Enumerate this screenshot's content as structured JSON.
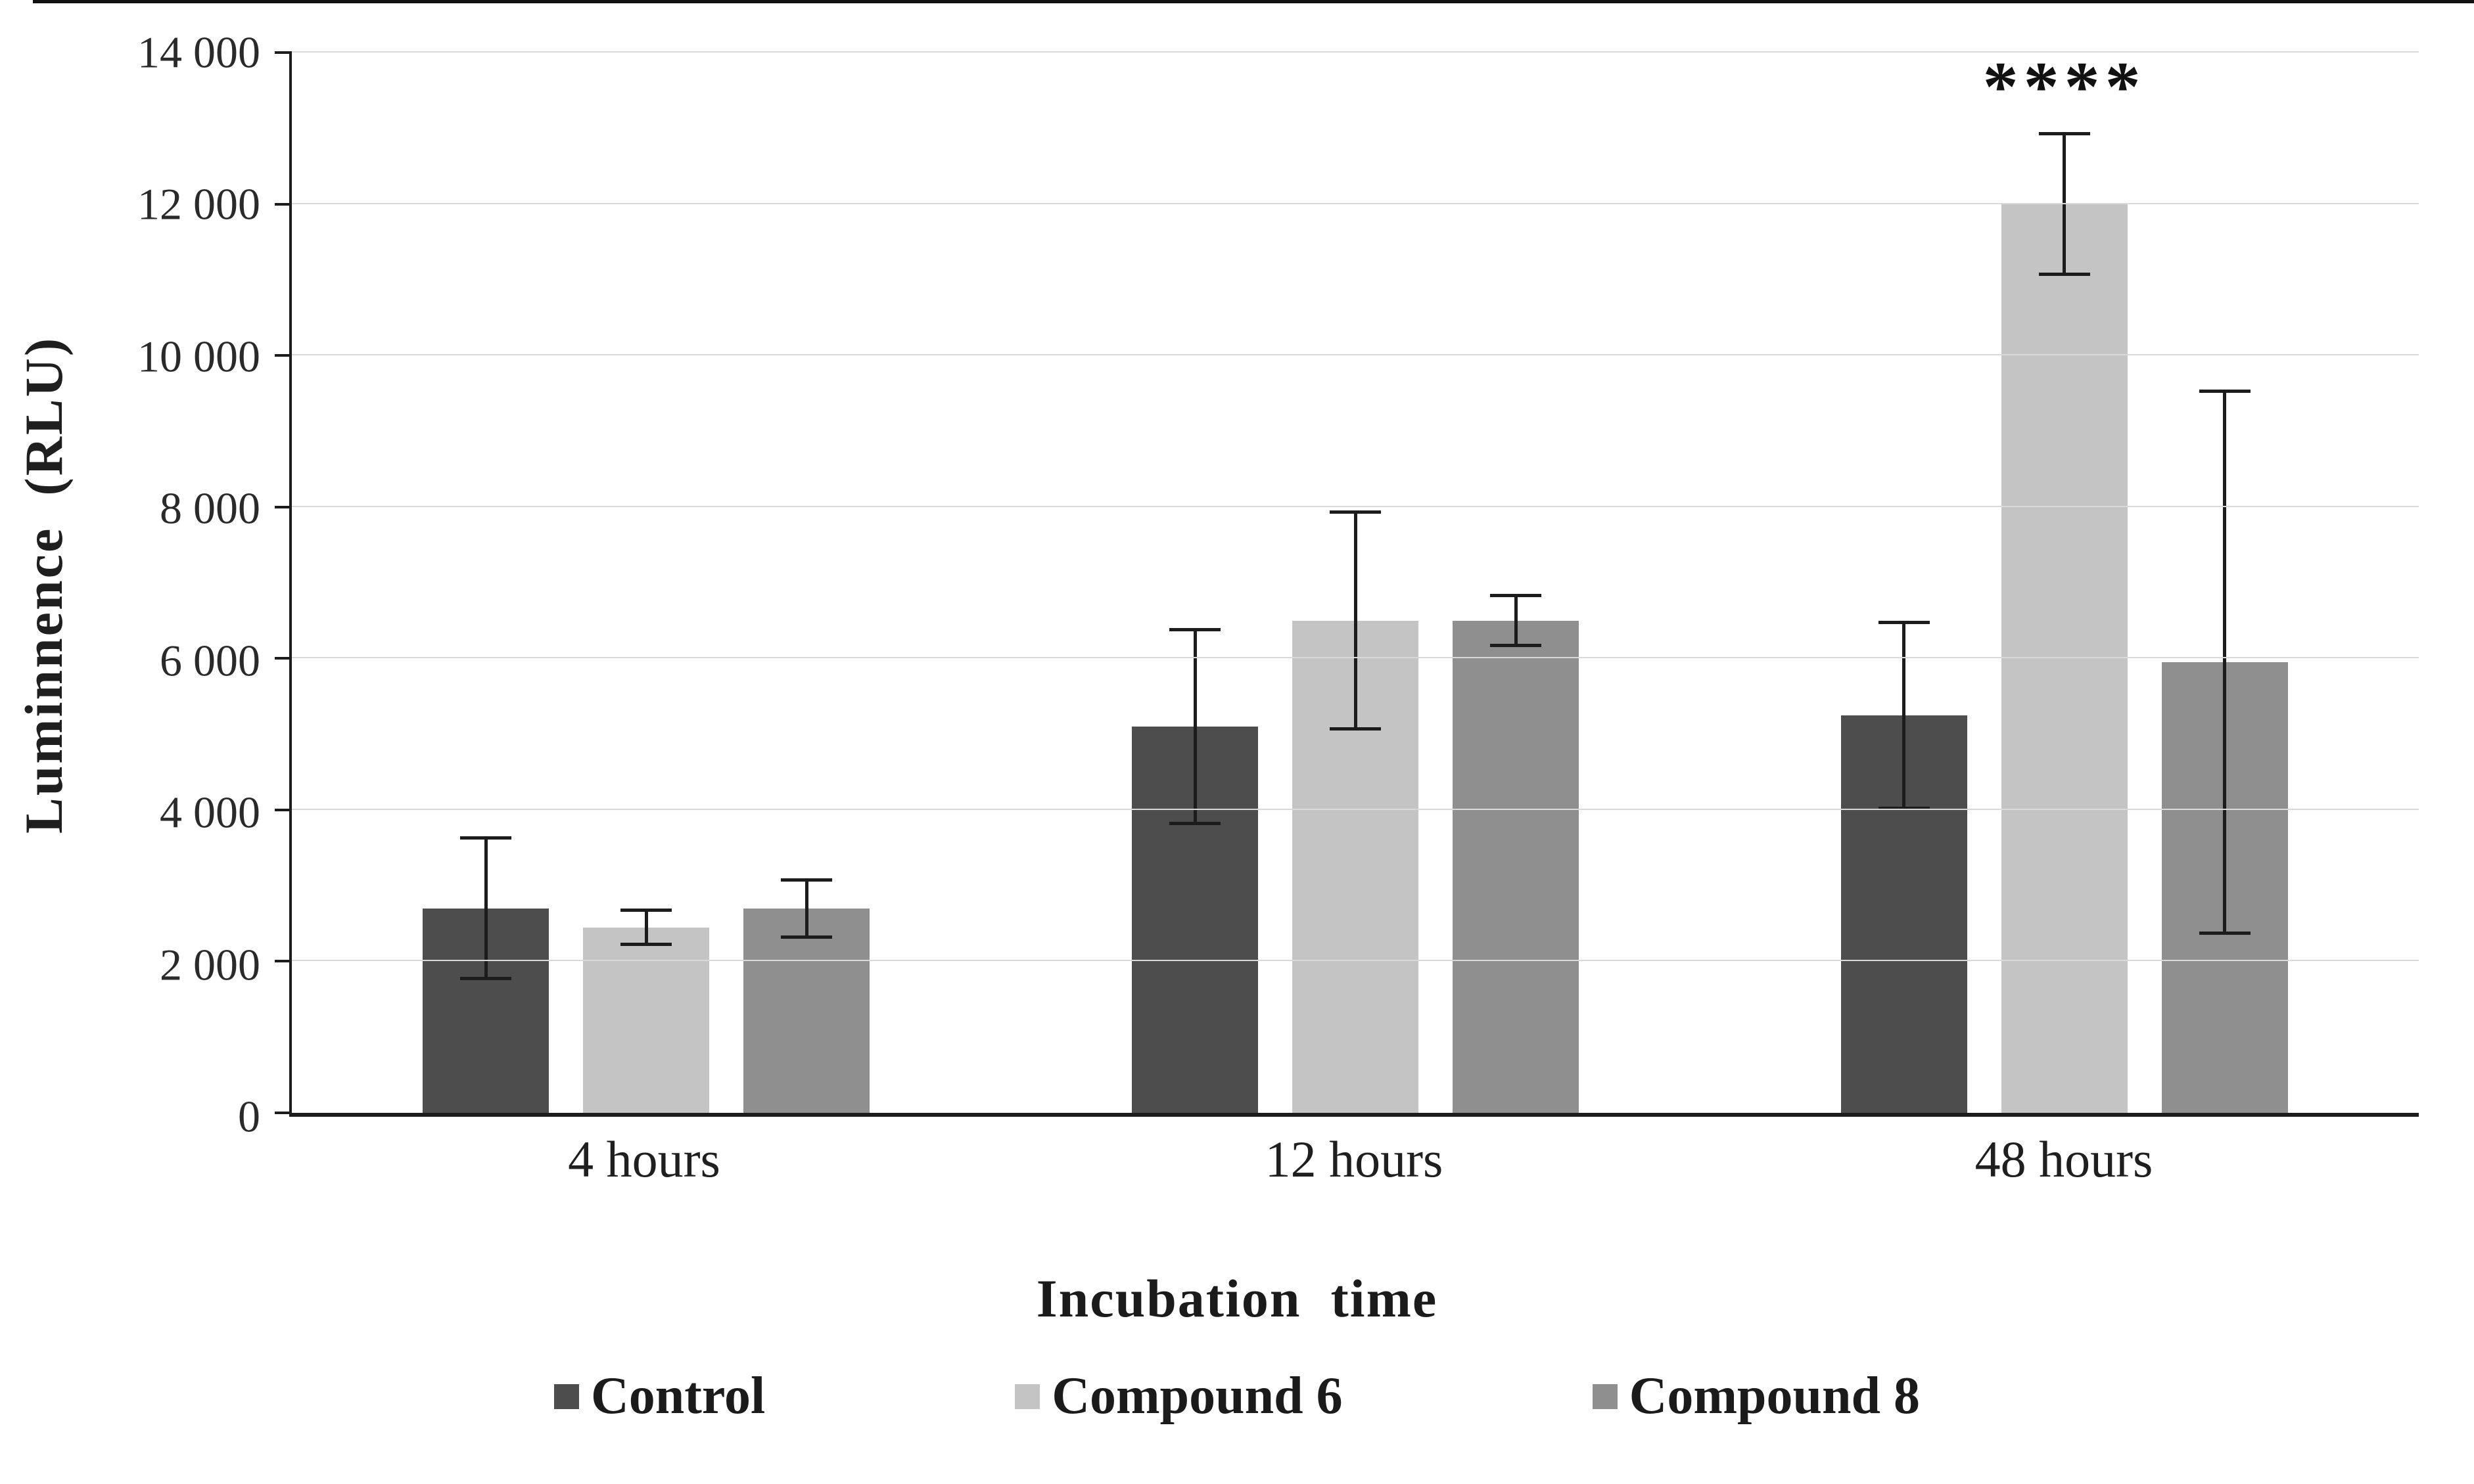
{
  "chart_data": {
    "type": "bar",
    "title": "",
    "xlabel": "Incubation  time",
    "ylabel": "Luminnence  (RLU)",
    "ylim": [
      0,
      14000
    ],
    "ytick_step": 2000,
    "ytick_labels": [
      "0",
      "2 000",
      "4 000",
      "6 000",
      "8 000",
      "10 000",
      "12 000",
      "14 000"
    ],
    "grid": true,
    "legend_position": "bottom",
    "categories": [
      "4 hours",
      "12 hours",
      "48 hours"
    ],
    "series": [
      {
        "name": "Control",
        "color": "#4d4d4d",
        "values": [
          2700,
          5100,
          5250
        ],
        "errors": [
          950,
          1300,
          1250
        ]
      },
      {
        "name": "Compound 6",
        "color": "#c4c4c4",
        "values": [
          2450,
          6500,
          12000
        ],
        "errors": [
          250,
          1450,
          950
        ]
      },
      {
        "name": "Compound 8",
        "color": "#8f8f8f",
        "values": [
          2700,
          6500,
          5950
        ],
        "errors": [
          400,
          350,
          3600
        ]
      }
    ],
    "annotations": [
      {
        "category": "48 hours",
        "series": "Compound 6",
        "text": "****"
      }
    ]
  }
}
